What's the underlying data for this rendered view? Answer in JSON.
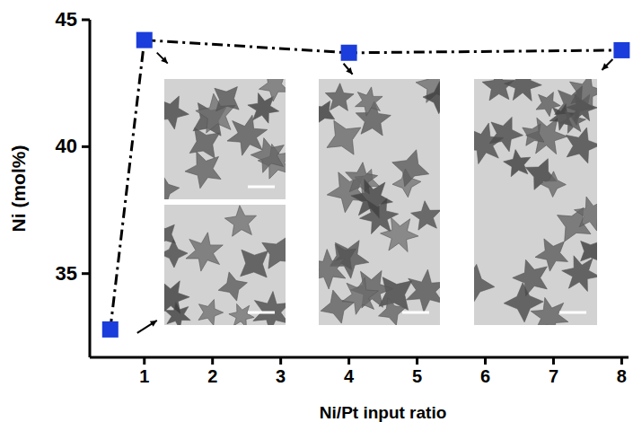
{
  "chart_data": {
    "type": "line",
    "x_label": "Ni/Pt input ratio",
    "y_label": "Ni (mol%)",
    "x": [
      0.5,
      1,
      4,
      8
    ],
    "values": [
      32.8,
      44.2,
      43.7,
      43.8
    ],
    "color": "#1a3ddb",
    "marker": "square",
    "line_style": "dashdot",
    "xlim": [
      0.2,
      8.1
    ],
    "ylim": [
      31.7,
      45
    ],
    "xticks": [
      1,
      2,
      3,
      4,
      5,
      6,
      7,
      8
    ],
    "yticks": [
      35,
      40,
      45
    ]
  }
}
